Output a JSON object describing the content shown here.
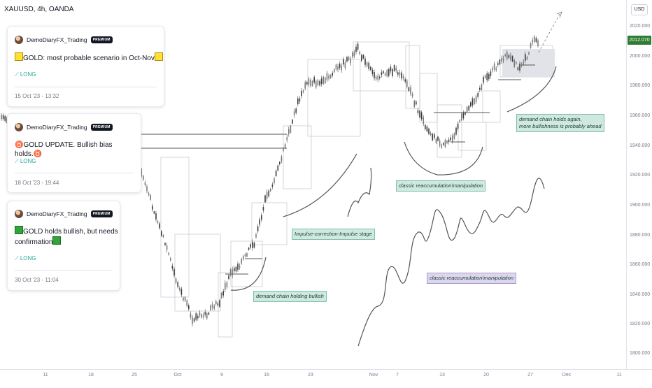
{
  "symbol": {
    "title": "XAUUSD, 4h, OANDA"
  },
  "price_axis": {
    "currency": "USD",
    "last_price": "2012.070",
    "ticks": [
      "2020.000",
      "2000.000",
      "1980.000",
      "1960.000",
      "1940.000",
      "1920.000",
      "1900.000",
      "1880.000",
      "1860.000",
      "1840.000",
      "1820.000",
      "1800.000"
    ]
  },
  "time_axis": {
    "ticks": [
      "11",
      "18",
      "25",
      "Oct",
      "9",
      "16",
      "23",
      "Nov",
      "7",
      "13",
      "20",
      "27",
      "Dec",
      "11"
    ]
  },
  "ideas": [
    {
      "author": "DemoDiaryFX_Trading",
      "badge": "PREMIUM",
      "title": "GOLD: most probable scenario in Oct-Nov",
      "direction": "LONG",
      "date": "15 Oct '23 - 13:32"
    },
    {
      "author": "DemoDiaryFX_Trading",
      "badge": "PREMIUM",
      "title": "GOLD UPDATE. Bullish bias holds.",
      "direction": "LONG",
      "date": "18 Oct '23 - 19:44"
    },
    {
      "author": "DemoDiaryFX_Trading",
      "badge": "PREMIUM",
      "title_line1": "GOLD holds bullish, but needs",
      "title_line2": "confirmation",
      "direction": "LONG",
      "date": "30 Oct '23 - 11:04"
    }
  ],
  "annotations": {
    "demand_chain_holding": "demand chain holding bullish",
    "impulse_correction": "Impulse-correction-Impulse stage",
    "reaccumulation_top": "classic reaccumulation\\manipulation",
    "reaccumulation_bottom": "classic reaccumulation\\manipulation",
    "demand_holds_line1": "demand chain holds again,",
    "demand_holds_line2": "more bullishness is probably ahead"
  },
  "colors": {
    "accent_green": "#2e7d32",
    "long": "#26a69a",
    "candles": "#3c3c3c"
  }
}
